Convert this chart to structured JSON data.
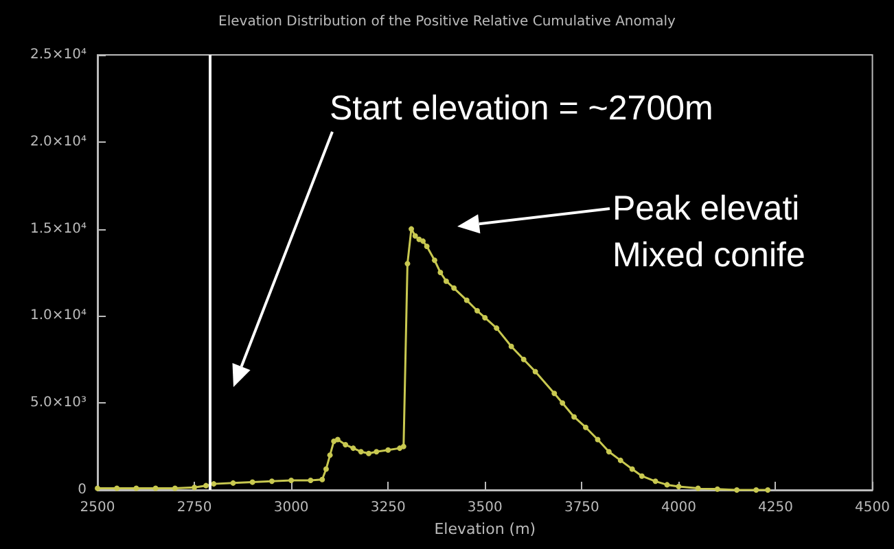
{
  "chart_data": {
    "type": "line",
    "title": "Elevation Distribution of the Positive Relative Cumulative Anomaly",
    "xlabel": "Elevation (m)",
    "x": [
      2500,
      2550,
      2600,
      2650,
      2700,
      2750,
      2780,
      2800,
      2850,
      2900,
      2950,
      3000,
      3050,
      3080,
      3090,
      3100,
      3110,
      3120,
      3140,
      3160,
      3180,
      3200,
      3220,
      3250,
      3280,
      3290,
      3300,
      3310,
      3320,
      3330,
      3340,
      3350,
      3370,
      3385,
      3400,
      3420,
      3453,
      3480,
      3500,
      3530,
      3568,
      3600,
      3630,
      3679,
      3700,
      3730,
      3760,
      3791,
      3820,
      3850,
      3880,
      3905,
      3940,
      3970,
      4000,
      4050,
      4100,
      4150,
      4200,
      4230
    ],
    "series": [
      {
        "color": "#c8c850",
        "values": [
          100,
          100,
          100,
          100,
          100,
          150,
          250,
          350,
          400,
          450,
          500,
          550,
          550,
          600,
          1200,
          2000,
          2800,
          2900,
          2600,
          2400,
          2200,
          2100,
          2200,
          2300,
          2400,
          2500,
          13000,
          15000,
          14600,
          14400,
          14300,
          14000,
          13200,
          12500,
          12000,
          11600,
          10900,
          10300,
          9900,
          9300,
          8250,
          7500,
          6800,
          5550,
          5000,
          4200,
          3600,
          2900,
          2200,
          1700,
          1200,
          800,
          500,
          300,
          200,
          100,
          50,
          0,
          0,
          0
        ]
      }
    ],
    "marker": "circle",
    "grid": false,
    "xlim": [
      2500,
      4500
    ],
    "xticks": [
      2500,
      2750,
      3000,
      3250,
      3500,
      3750,
      4000,
      4250,
      4500
    ],
    "ylim": [
      0,
      25000
    ],
    "yticks": [
      0,
      {
        "value": 5000,
        "label": "5.0×10³"
      },
      {
        "value": 10000,
        "label": "1.0×10⁴"
      },
      {
        "value": 15000,
        "label": "1.5×10⁴"
      },
      {
        "value": 20000,
        "label": "2.0×10⁴"
      },
      {
        "value": 25000,
        "label": "2.5×10⁴"
      }
    ],
    "ref_lines": [
      {
        "axis": "x",
        "value": 2790,
        "color": "#ffffff"
      }
    ],
    "annotations": [
      "Start elevation = ~2700m",
      "Peak elevati\nMixed conife"
    ]
  }
}
